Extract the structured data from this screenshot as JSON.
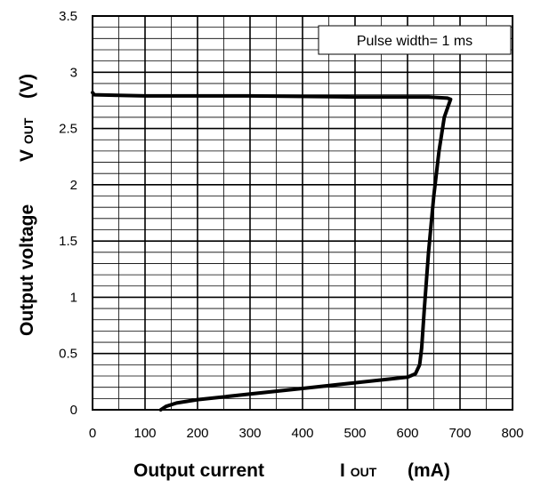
{
  "chart_data": {
    "type": "line",
    "title": "",
    "annotation": "Pulse width= 1 ms",
    "xlabel": {
      "text": "Output current",
      "symbol_main": "I",
      "symbol_sub": "OUT",
      "unit": "(mA)"
    },
    "ylabel": {
      "text": "Output voltage",
      "symbol_main": "V",
      "symbol_sub": "OUT",
      "unit": "(V)"
    },
    "xlim": [
      0,
      800
    ],
    "ylim": [
      0,
      3.5
    ],
    "x_major_ticks": [
      0,
      100,
      200,
      300,
      400,
      500,
      600,
      700,
      800
    ],
    "y_major_ticks": [
      0,
      0.5,
      1,
      1.5,
      2,
      2.5,
      3,
      3.5
    ],
    "x_tick_labels": [
      "0",
      "100",
      "200",
      "300",
      "400",
      "500",
      "600",
      "700",
      "800"
    ],
    "y_tick_labels": [
      "0",
      "0.5",
      "1",
      "1.5",
      "2",
      "2.5",
      "3",
      "3.5"
    ],
    "x_minor_step": 50,
    "y_minor_step": 0.1,
    "grid": true,
    "series": [
      {
        "color": "#000000",
        "points": [
          [
            0,
            2.82
          ],
          [
            3,
            2.8
          ],
          [
            100,
            2.79
          ],
          [
            300,
            2.79
          ],
          [
            500,
            2.78
          ],
          [
            640,
            2.78
          ],
          [
            676,
            2.77
          ],
          [
            682,
            2.76
          ],
          [
            670,
            2.6
          ],
          [
            660,
            2.3
          ],
          [
            650,
            1.9
          ],
          [
            640,
            1.4
          ],
          [
            632,
            0.9
          ],
          [
            627,
            0.55
          ],
          [
            623,
            0.4
          ],
          [
            615,
            0.32
          ],
          [
            600,
            0.29
          ],
          [
            500,
            0.24
          ],
          [
            400,
            0.19
          ],
          [
            300,
            0.14
          ],
          [
            200,
            0.09
          ],
          [
            160,
            0.06
          ],
          [
            140,
            0.03
          ],
          [
            130,
            0.0
          ]
        ]
      }
    ]
  }
}
